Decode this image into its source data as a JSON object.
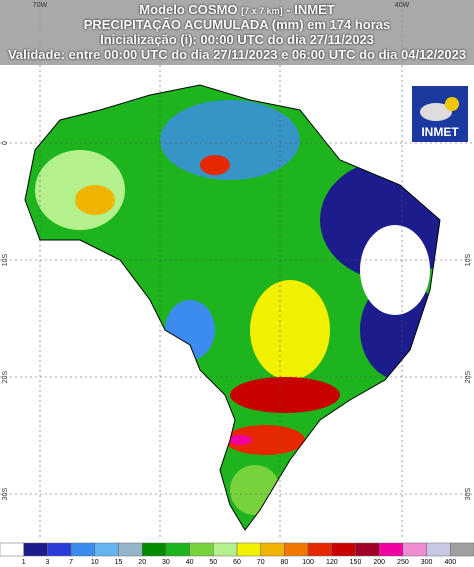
{
  "header": {
    "line1": {
      "main": "Modelo COSMO",
      "small": "[7 x 7 km]",
      "tail": "- INMET"
    },
    "line2": "PRECIPITAÇÃO ACUMULADA (mm) em 174 horas",
    "line3": "Inicialização (i): 00:00 UTC do dia 27/11/2023",
    "line4": "Validade: entre 00:00 UTC do dia 27/11/2023 e 06:00 UTC do dia 04/12/2023"
  },
  "logo": "INMET",
  "top_labels": [
    "70W",
    "40W"
  ],
  "side_labels": [
    "0",
    "10S",
    "20S",
    "30S"
  ],
  "legend": {
    "colors": [
      "#ffffff",
      "#1c1c8c",
      "#2a3cd8",
      "#3c8cf0",
      "#64b4f0",
      "#96b4c8",
      "#008c00",
      "#1eb41e",
      "#78d23c",
      "#b4f08c",
      "#f0f000",
      "#f0b400",
      "#f07800",
      "#e62800",
      "#c80000",
      "#a00028",
      "#f000a0",
      "#f08cd2",
      "#c8c8e6",
      "#a0a0a0"
    ],
    "labels": [
      "1",
      "3",
      "7",
      "10",
      "15",
      "20",
      "30",
      "40",
      "50",
      "60",
      "70",
      "80",
      "100",
      "120",
      "150",
      "200",
      "250",
      "300",
      "400"
    ]
  }
}
